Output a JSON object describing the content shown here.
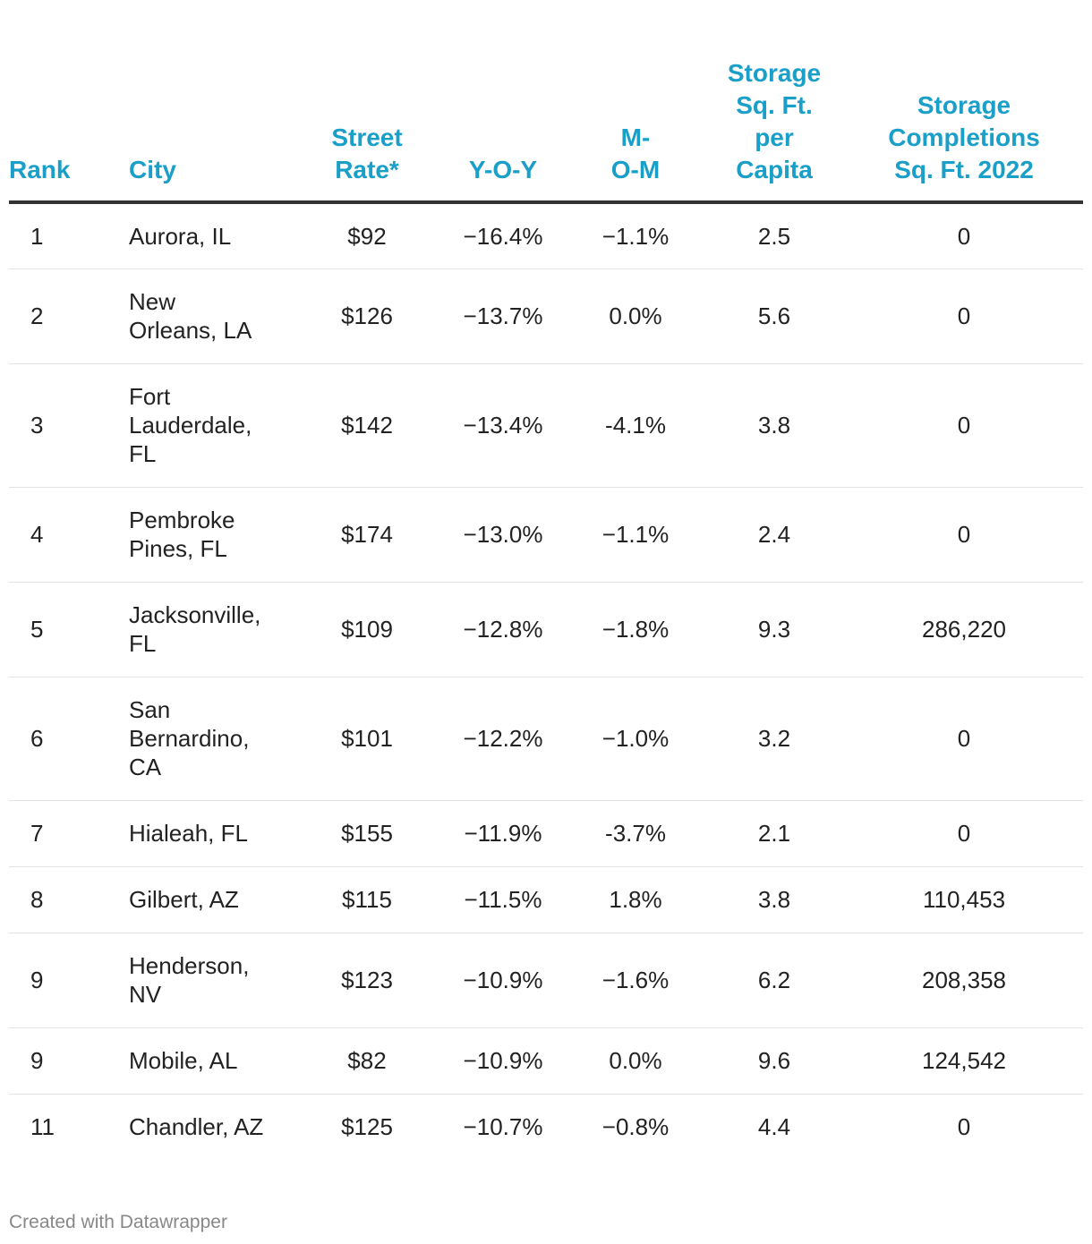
{
  "chart_data": {
    "type": "table",
    "columns": [
      "Rank",
      "City",
      "Street Rate*",
      "Y-O-Y",
      "M-O-M",
      "Storage Sq. Ft. per Capita",
      "Storage Completions Sq. Ft. 2022"
    ],
    "rows": [
      [
        "1",
        "Aurora, IL",
        "$92",
        "−16.4%",
        "−1.1%",
        "2.5",
        "0"
      ],
      [
        "2",
        "New Orleans, LA",
        "$126",
        "−13.7%",
        "0.0%",
        "5.6",
        "0"
      ],
      [
        "3",
        "Fort Lauderdale, FL",
        "$142",
        "−13.4%",
        "-4.1%",
        "3.8",
        "0"
      ],
      [
        "4",
        "Pembroke Pines, FL",
        "$174",
        "−13.0%",
        "−1.1%",
        "2.4",
        "0"
      ],
      [
        "5",
        "Jacksonville, FL",
        "$109",
        "−12.8%",
        "−1.8%",
        "9.3",
        "286,220"
      ],
      [
        "6",
        "San Bernardino, CA",
        "$101",
        "−12.2%",
        "−1.0%",
        "3.2",
        "0"
      ],
      [
        "7",
        "Hialeah, FL",
        "$155",
        "−11.9%",
        "-3.7%",
        "2.1",
        "0"
      ],
      [
        "8",
        "Gilbert, AZ",
        "$115",
        "−11.5%",
        "1.8%",
        "3.8",
        "110,453"
      ],
      [
        "9",
        "Henderson, NV",
        "$123",
        "−10.9%",
        "−1.6%",
        "6.2",
        "208,358"
      ],
      [
        "9",
        "Mobile, AL",
        "$82",
        "−10.9%",
        "0.0%",
        "9.6",
        "124,542"
      ],
      [
        "11",
        "Chandler, AZ",
        "$125",
        "−10.7%",
        "−0.8%",
        "4.4",
        "0"
      ]
    ]
  },
  "footer": "Created with Datawrapper",
  "colors": {
    "header": "#1a9fc9",
    "text": "#222222",
    "rule": "#333333",
    "divider": "#e2e2e2",
    "footer": "#888888"
  }
}
